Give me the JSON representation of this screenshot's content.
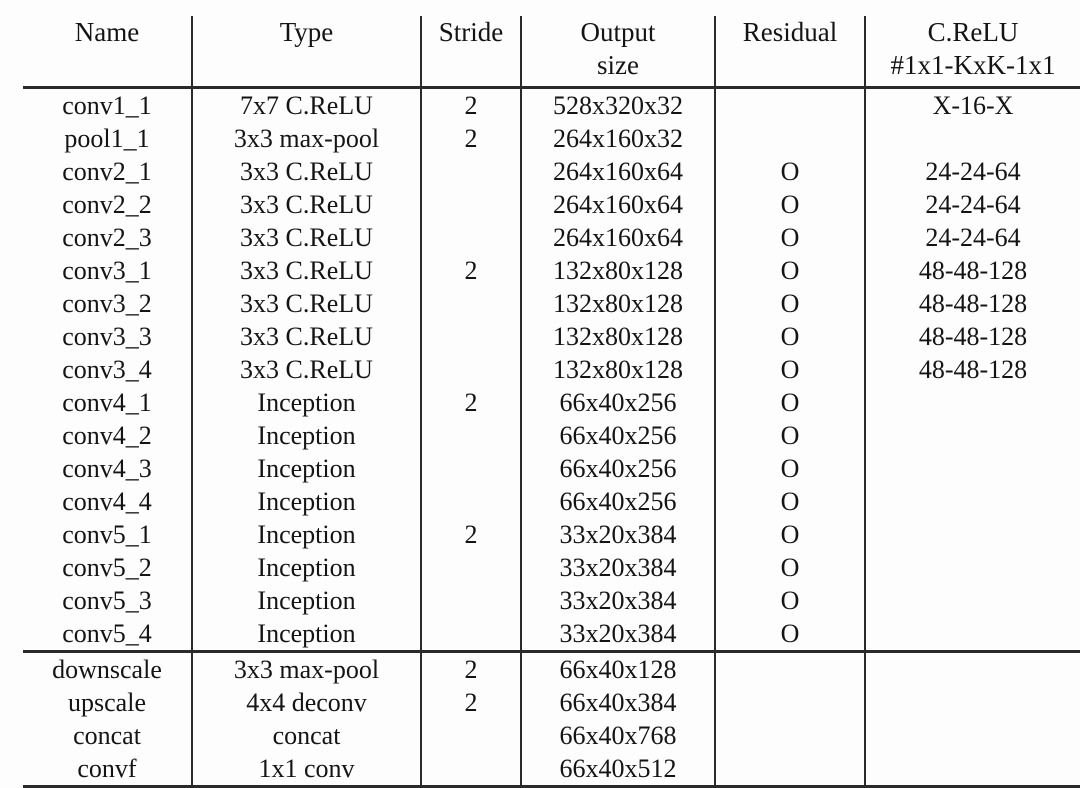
{
  "colors": {
    "background": "#fdfdfd",
    "text": "#141414",
    "rule": "#2a2a2a"
  },
  "table": {
    "columns": [
      {
        "key": "name",
        "label": "Name"
      },
      {
        "key": "type",
        "label": "Type"
      },
      {
        "key": "stride",
        "label": "Stride"
      },
      {
        "key": "output",
        "label": "Output\nsize"
      },
      {
        "key": "residual",
        "label": "Residual"
      },
      {
        "key": "crelu",
        "label": "C.ReLU\n#1x1-KxK-1x1"
      }
    ],
    "sections": [
      {
        "name": "backbone-layers",
        "rows": [
          {
            "name": "conv1_1",
            "type": "7x7 C.ReLU",
            "stride": "2",
            "output": "528x320x32",
            "residual": "",
            "crelu": "X-16-X"
          },
          {
            "name": "pool1_1",
            "type": "3x3 max-pool",
            "stride": "2",
            "output": "264x160x32",
            "residual": "",
            "crelu": ""
          },
          {
            "name": "conv2_1",
            "type": "3x3 C.ReLU",
            "stride": "",
            "output": "264x160x64",
            "residual": "O",
            "crelu": "24-24-64"
          },
          {
            "name": "conv2_2",
            "type": "3x3 C.ReLU",
            "stride": "",
            "output": "264x160x64",
            "residual": "O",
            "crelu": "24-24-64"
          },
          {
            "name": "conv2_3",
            "type": "3x3 C.ReLU",
            "stride": "",
            "output": "264x160x64",
            "residual": "O",
            "crelu": "24-24-64"
          },
          {
            "name": "conv3_1",
            "type": "3x3 C.ReLU",
            "stride": "2",
            "output": "132x80x128",
            "residual": "O",
            "crelu": "48-48-128"
          },
          {
            "name": "conv3_2",
            "type": "3x3 C.ReLU",
            "stride": "",
            "output": "132x80x128",
            "residual": "O",
            "crelu": "48-48-128"
          },
          {
            "name": "conv3_3",
            "type": "3x3 C.ReLU",
            "stride": "",
            "output": "132x80x128",
            "residual": "O",
            "crelu": "48-48-128"
          },
          {
            "name": "conv3_4",
            "type": "3x3 C.ReLU",
            "stride": "",
            "output": "132x80x128",
            "residual": "O",
            "crelu": "48-48-128"
          },
          {
            "name": "conv4_1",
            "type": "Inception",
            "stride": "2",
            "output": "66x40x256",
            "residual": "O",
            "crelu": ""
          },
          {
            "name": "conv4_2",
            "type": "Inception",
            "stride": "",
            "output": "66x40x256",
            "residual": "O",
            "crelu": ""
          },
          {
            "name": "conv4_3",
            "type": "Inception",
            "stride": "",
            "output": "66x40x256",
            "residual": "O",
            "crelu": ""
          },
          {
            "name": "conv4_4",
            "type": "Inception",
            "stride": "",
            "output": "66x40x256",
            "residual": "O",
            "crelu": ""
          },
          {
            "name": "conv5_1",
            "type": "Inception",
            "stride": "2",
            "output": "33x20x384",
            "residual": "O",
            "crelu": ""
          },
          {
            "name": "conv5_2",
            "type": "Inception",
            "stride": "",
            "output": "33x20x384",
            "residual": "O",
            "crelu": ""
          },
          {
            "name": "conv5_3",
            "type": "Inception",
            "stride": "",
            "output": "33x20x384",
            "residual": "O",
            "crelu": ""
          },
          {
            "name": "conv5_4",
            "type": "Inception",
            "stride": "",
            "output": "33x20x384",
            "residual": "O",
            "crelu": ""
          }
        ]
      },
      {
        "name": "fusion-layers",
        "rows": [
          {
            "name": "downscale",
            "type": "3x3 max-pool",
            "stride": "2",
            "output": "66x40x128",
            "residual": "",
            "crelu": ""
          },
          {
            "name": "upscale",
            "type": "4x4 deconv",
            "stride": "2",
            "output": "66x40x384",
            "residual": "",
            "crelu": ""
          },
          {
            "name": "concat",
            "type": "concat",
            "stride": "",
            "output": "66x40x768",
            "residual": "",
            "crelu": ""
          },
          {
            "name": "convf",
            "type": "1x1 conv",
            "stride": "",
            "output": "66x40x512",
            "residual": "",
            "crelu": ""
          }
        ]
      }
    ]
  }
}
